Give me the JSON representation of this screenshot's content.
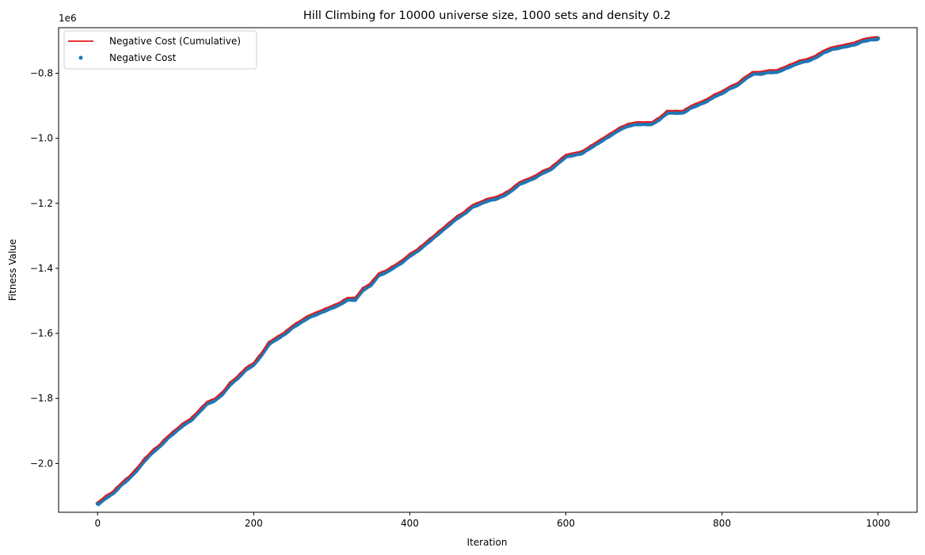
{
  "chart_data": {
    "type": "line",
    "title": "Hill Climbing for 10000 universe size, 1000 sets and density 0.2",
    "xlabel": "Iteration",
    "ylabel": "Fitness Value",
    "y_scale_label": "1e6",
    "xlim": [
      -50,
      1050
    ],
    "ylim": [
      -2.15,
      -0.66
    ],
    "x_ticks": [
      0,
      200,
      400,
      600,
      800,
      1000
    ],
    "x_tick_labels": [
      "0",
      "200",
      "400",
      "600",
      "800",
      "1000"
    ],
    "y_ticks": [
      -2.0,
      -1.8,
      -1.6,
      -1.4,
      -1.2,
      -1.0,
      -0.8
    ],
    "y_tick_labels": [
      "−2.0",
      "−1.8",
      "−1.6",
      "−1.4",
      "−1.2",
      "−1.0",
      "−0.8"
    ],
    "grid": false,
    "legend_position": "upper-left",
    "colors": {
      "cumulative": "#e41a1c",
      "points": "#1f77b4"
    },
    "series": [
      {
        "name": "Negative Cost (Cumulative)",
        "kind": "line",
        "x": [
          0,
          10,
          20,
          30,
          40,
          50,
          60,
          70,
          80,
          90,
          100,
          110,
          120,
          130,
          140,
          150,
          160,
          170,
          180,
          190,
          200,
          210,
          220,
          230,
          240,
          250,
          260,
          270,
          280,
          290,
          300,
          310,
          320,
          330,
          340,
          350,
          360,
          370,
          380,
          390,
          400,
          410,
          420,
          430,
          440,
          450,
          460,
          470,
          480,
          490,
          500,
          510,
          520,
          530,
          540,
          550,
          560,
          570,
          580,
          590,
          600,
          610,
          620,
          630,
          640,
          650,
          660,
          670,
          680,
          690,
          700,
          710,
          720,
          730,
          740,
          750,
          760,
          770,
          780,
          790,
          800,
          810,
          820,
          830,
          840,
          850,
          860,
          870,
          880,
          890,
          900,
          910,
          920,
          930,
          940,
          950,
          960,
          970,
          980,
          990,
          1000
        ],
        "y": [
          -2.12,
          -2.1,
          -2.085,
          -2.06,
          -2.04,
          -2.015,
          -1.985,
          -1.96,
          -1.94,
          -1.915,
          -1.895,
          -1.875,
          -1.86,
          -1.835,
          -1.81,
          -1.8,
          -1.78,
          -1.75,
          -1.73,
          -1.705,
          -1.69,
          -1.66,
          -1.625,
          -1.61,
          -1.595,
          -1.575,
          -1.56,
          -1.545,
          -1.535,
          -1.525,
          -1.515,
          -1.505,
          -1.49,
          -1.49,
          -1.46,
          -1.445,
          -1.415,
          -1.405,
          -1.39,
          -1.375,
          -1.355,
          -1.34,
          -1.32,
          -1.3,
          -1.28,
          -1.26,
          -1.24,
          -1.225,
          -1.205,
          -1.195,
          -1.185,
          -1.18,
          -1.17,
          -1.155,
          -1.135,
          -1.125,
          -1.115,
          -1.1,
          -1.09,
          -1.07,
          -1.05,
          -1.045,
          -1.04,
          -1.025,
          -1.01,
          -0.995,
          -0.98,
          -0.965,
          -0.955,
          -0.95,
          -0.95,
          -0.95,
          -0.935,
          -0.915,
          -0.915,
          -0.915,
          -0.9,
          -0.89,
          -0.88,
          -0.865,
          -0.855,
          -0.84,
          -0.83,
          -0.81,
          -0.795,
          -0.795,
          -0.79,
          -0.79,
          -0.78,
          -0.77,
          -0.76,
          -0.755,
          -0.745,
          -0.73,
          -0.72,
          -0.715,
          -0.71,
          -0.705,
          -0.695,
          -0.69,
          -0.688
        ]
      },
      {
        "name": "Negative Cost",
        "kind": "scatter",
        "note_density": 1
      }
    ]
  }
}
